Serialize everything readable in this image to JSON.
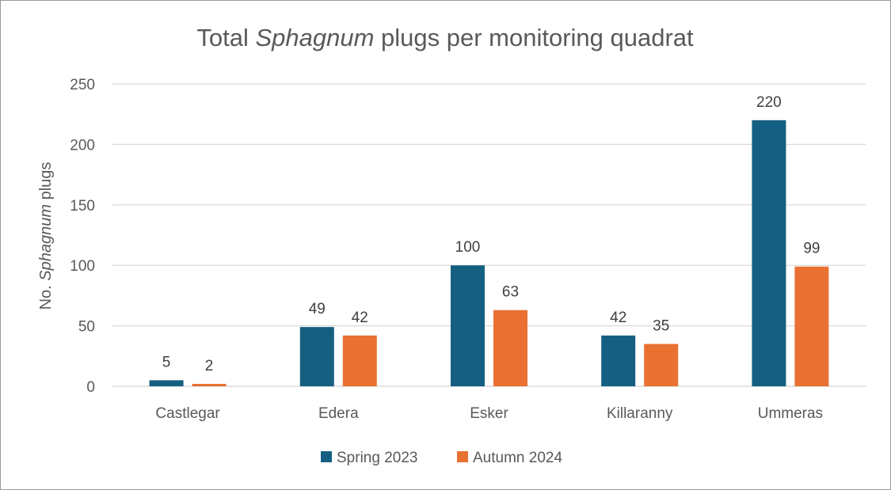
{
  "chart_data": {
    "type": "bar",
    "title_parts": [
      "Total ",
      "Sphagnum",
      " plugs per monitoring quadrat"
    ],
    "ylabel_parts": [
      "No. ",
      "Sphagnum",
      " plugs"
    ],
    "xlabel": "",
    "categories": [
      "Castlegar",
      "Edera",
      "Esker",
      "Killaranny",
      "Ummeras"
    ],
    "series": [
      {
        "name": "Spring 2023",
        "values": [
          5,
          49,
          100,
          42,
          220
        ],
        "color": "#156082"
      },
      {
        "name": "Autumn 2024",
        "values": [
          2,
          42,
          63,
          35,
          99
        ],
        "color": "#E97132"
      }
    ],
    "ylim": [
      0,
      250
    ],
    "yticks": [
      0,
      50,
      100,
      150,
      200,
      250
    ],
    "grid": true,
    "gridColor": "#d9d9d9",
    "legend_position": "bottom",
    "data_labels": true
  }
}
